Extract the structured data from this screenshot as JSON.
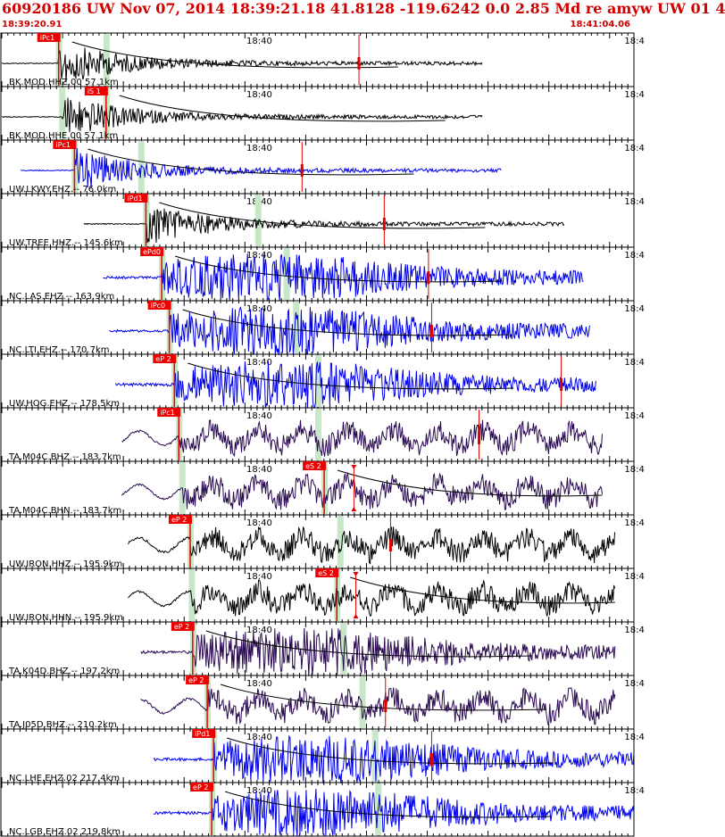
{
  "header": {
    "title": "60920186 UW Nov 07, 2014 18:39:21.18   41.8128 -119.6242  0.0 2.85 Md re amyw UW 01   4",
    "start_time": "18:39:20.91",
    "end_time": "18:41:04.06"
  },
  "colors": {
    "header_text": "#d00000",
    "pick_box": "#ee0000",
    "pick_text": "#ffffff",
    "coda": "#e00000",
    "window": "#c8e6c8",
    "black_trace": "#000000",
    "blue_trace": "#0000ee",
    "purple_trace": "#2a0a50"
  },
  "minute_label": "18:40",
  "edge_label": "18:4",
  "traces": [
    {
      "label": "BK.MOD.HHZ.00 57.1km",
      "color": "black",
      "pick": "iPc1",
      "pick_pos": 0.09,
      "s_pos": 0.165,
      "coda_pos": 0.565,
      "coda_type": "bar",
      "start": 0.0,
      "end": 0.76,
      "style": "decay",
      "noise": 0.05
    },
    {
      "label": "BK.MOD.HHE.00 57.1km",
      "color": "black",
      "pick": "iS 1",
      "pick_pos": 0.165,
      "s_pos": 0.095,
      "coda_pos": null,
      "coda_type": null,
      "start": 0.0,
      "end": 0.76,
      "style": "decay",
      "noise": 0.04
    },
    {
      "label": "UW.LKWY.EHZ.-- 76.0km",
      "color": "blue",
      "pick": "iPc1",
      "pick_pos": 0.115,
      "s_pos": 0.22,
      "coda_pos": 0.475,
      "coda_type": "bar",
      "start": 0.03,
      "end": 0.79,
      "style": "decay",
      "noise": 0.05
    },
    {
      "label": "UW.TREE.HHZ.-- 145.6km",
      "color": "black",
      "pick": "iPd1",
      "pick_pos": 0.228,
      "s_pos": 0.405,
      "coda_pos": 0.605,
      "coda_type": "bar",
      "start": 0.13,
      "end": 0.89,
      "style": "decay",
      "noise": 0.05
    },
    {
      "label": "NC.LAS.EHZ.-- 163.9km",
      "color": "blue",
      "pick": "ePd0",
      "pick_pos": 0.253,
      "s_pos": 0.45,
      "coda_pos": 0.675,
      "coda_type": "bar",
      "start": 0.16,
      "end": 0.92,
      "style": "burst",
      "noise": 0.12
    },
    {
      "label": "NC.LTI.EHZ.-- 170.7km",
      "color": "blue",
      "pick": "iPc0",
      "pick_pos": 0.265,
      "s_pos": 0.465,
      "coda_pos": 0.68,
      "coda_type": "bar",
      "start": 0.17,
      "end": 0.93,
      "style": "burst",
      "noise": 0.12
    },
    {
      "label": "UW.HOG.EHZ.-- 178.5km",
      "color": "blue",
      "pick": "eP 2",
      "pick_pos": 0.273,
      "s_pos": 0.5,
      "coda_pos": 0.885,
      "coda_type": "bar",
      "start": 0.18,
      "end": 0.94,
      "style": "burst",
      "noise": 0.15
    },
    {
      "label": "TA.M04C.BHZ.-- 183.7km",
      "color": "purple",
      "pick": "iPc1",
      "pick_pos": 0.28,
      "s_pos": 0.5,
      "coda_pos": 0.755,
      "coda_type": "bar",
      "start": 0.19,
      "end": 0.95,
      "style": "wave",
      "noise": 0.12
    },
    {
      "label": "TA.M04C.BHN.-- 183.7km",
      "color": "purple",
      "pick": "eS 2",
      "pick_pos": 0.51,
      "s_pos": 0.285,
      "coda_pos": 0.557,
      "coda_type": "s",
      "start": 0.19,
      "end": 0.95,
      "style": "wave",
      "noise": 0.1
    },
    {
      "label": "UW.IRON.HHZ.-- 195.9km",
      "color": "black",
      "pick": "eP 2",
      "pick_pos": 0.298,
      "s_pos": 0.535,
      "coda_pos": 0.615,
      "coda_type": "bar",
      "start": 0.2,
      "end": 0.97,
      "style": "wave",
      "noise": 0.12
    },
    {
      "label": "UW.IRON.HHN.-- 195.9km",
      "color": "black",
      "pick": "eS 2",
      "pick_pos": 0.53,
      "s_pos": 0.3,
      "coda_pos": 0.56,
      "coda_type": "s",
      "start": 0.2,
      "end": 0.97,
      "style": "wave",
      "noise": 0.1
    },
    {
      "label": "TA.K04D.BHZ.-- 197.2km",
      "color": "purple",
      "pick": "eP 2",
      "pick_pos": 0.302,
      "s_pos": 0.54,
      "coda_pos": null,
      "coda_type": null,
      "start": 0.22,
      "end": 0.97,
      "style": "burst",
      "noise": 0.15
    },
    {
      "label": "TA.J05D.BHZ.-- 210.2km",
      "color": "purple",
      "pick": "eP 2",
      "pick_pos": 0.325,
      "s_pos": 0.57,
      "coda_pos": 0.607,
      "coda_type": "bar",
      "start": 0.22,
      "end": 0.97,
      "style": "wave",
      "noise": 0.12
    },
    {
      "label": "NC.LHE.EHZ.02 217.4km",
      "color": "blue",
      "pick": "iPd1",
      "pick_pos": 0.335,
      "s_pos": 0.59,
      "coda_pos": 0.68,
      "coda_type": "bar",
      "start": 0.24,
      "end": 1.0,
      "style": "burst",
      "noise": 0.15
    },
    {
      "label": "NC.LGB.EHZ.02 219.8km",
      "color": "blue",
      "pick": "eP 2",
      "pick_pos": 0.332,
      "s_pos": 0.595,
      "coda_pos": null,
      "coda_type": null,
      "start": 0.24,
      "end": 1.0,
      "style": "burst",
      "noise": 0.15
    }
  ]
}
